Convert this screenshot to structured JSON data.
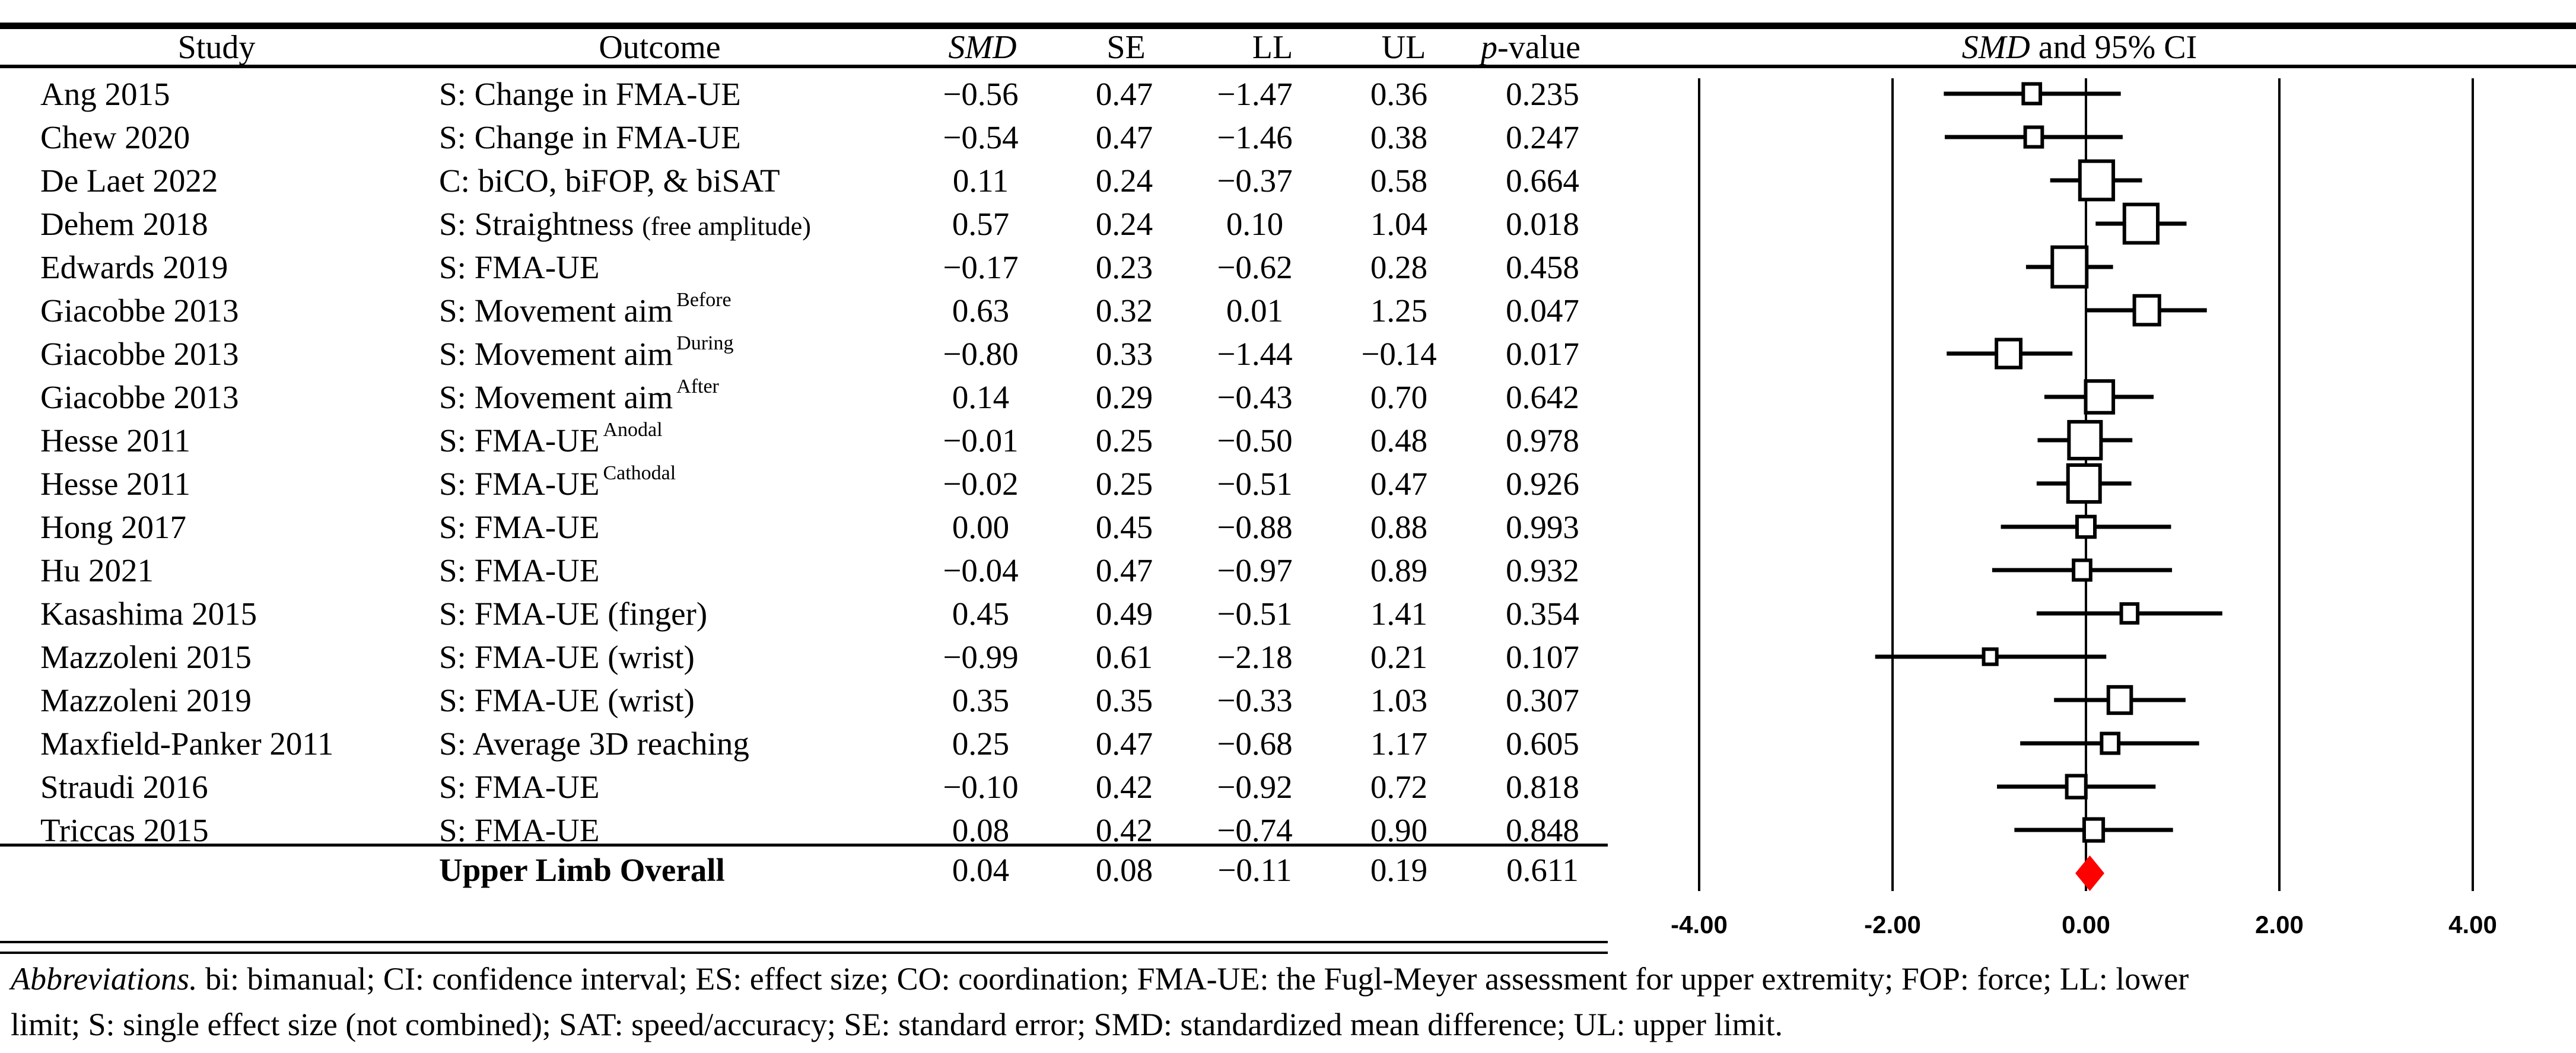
{
  "header": {
    "col_study": "Study",
    "col_outcome": "Outcome",
    "col_smd": "SMD",
    "col_se": "SE",
    "col_ll": "LL",
    "col_ul": "UL",
    "col_p_italic": "p",
    "col_p_rest": "-value",
    "plot_title_italic": "SMD",
    "plot_title_rest": " and 95% CI"
  },
  "rows": [
    {
      "study": "Ang 2015",
      "outcome": "S: Change in FMA-UE",
      "note": "",
      "sup": "",
      "smd": "−0.56",
      "se": "0.47",
      "ll": "−1.47",
      "ul": "0.36",
      "p": "0.235"
    },
    {
      "study": "Chew 2020",
      "outcome": "S: Change in FMA-UE",
      "note": "",
      "sup": "",
      "smd": "−0.54",
      "se": "0.47",
      "ll": "−1.46",
      "ul": "0.38",
      "p": "0.247"
    },
    {
      "study": "De Laet 2022",
      "outcome": "C: biCO, biFOP, & biSAT",
      "note": "",
      "sup": "",
      "smd": "0.11",
      "se": "0.24",
      "ll": "−0.37",
      "ul": "0.58",
      "p": "0.664"
    },
    {
      "study": "Dehem 2018",
      "outcome": "S: Straightness",
      "note": "(free amplitude)",
      "sup": "",
      "smd": "0.57",
      "se": "0.24",
      "ll": "0.10",
      "ul": "1.04",
      "p": "0.018"
    },
    {
      "study": "Edwards 2019",
      "outcome": "S: FMA-UE",
      "note": "",
      "sup": "",
      "smd": "−0.17",
      "se": "0.23",
      "ll": "−0.62",
      "ul": "0.28",
      "p": "0.458"
    },
    {
      "study": "Giacobbe 2013",
      "outcome": "S: Movement aim",
      "note": "",
      "sup": "Before",
      "smd": "0.63",
      "se": "0.32",
      "ll": "0.01",
      "ul": "1.25",
      "p": "0.047"
    },
    {
      "study": "Giacobbe 2013",
      "outcome": "S: Movement aim",
      "note": "",
      "sup": "During",
      "smd": "−0.80",
      "se": "0.33",
      "ll": "−1.44",
      "ul": "−0.14",
      "p": "0.017"
    },
    {
      "study": "Giacobbe 2013",
      "outcome": "S: Movement aim",
      "note": "",
      "sup": "After",
      "smd": "0.14",
      "se": "0.29",
      "ll": "−0.43",
      "ul": "0.70",
      "p": "0.642"
    },
    {
      "study": "Hesse 2011",
      "outcome": "S: FMA-UE",
      "note": "",
      "sup": "Anodal",
      "smd": "−0.01",
      "se": "0.25",
      "ll": "−0.50",
      "ul": "0.48",
      "p": "0.978"
    },
    {
      "study": "Hesse 2011",
      "outcome": "S: FMA-UE",
      "note": "",
      "sup": "Cathodal",
      "smd": "−0.02",
      "se": "0.25",
      "ll": "−0.51",
      "ul": "0.47",
      "p": "0.926"
    },
    {
      "study": "Hong 2017",
      "outcome": "S: FMA-UE",
      "note": "",
      "sup": "",
      "smd": "0.00",
      "se": "0.45",
      "ll": "−0.88",
      "ul": "0.88",
      "p": "0.993"
    },
    {
      "study": "Hu 2021",
      "outcome": "S: FMA-UE",
      "note": "",
      "sup": "",
      "smd": "−0.04",
      "se": "0.47",
      "ll": "−0.97",
      "ul": "0.89",
      "p": "0.932"
    },
    {
      "study": "Kasashima 2015",
      "outcome": "S: FMA-UE (finger)",
      "note": "",
      "sup": "",
      "smd": "0.45",
      "se": "0.49",
      "ll": "−0.51",
      "ul": "1.41",
      "p": "0.354"
    },
    {
      "study": "Mazzoleni 2015",
      "outcome": "S: FMA-UE (wrist)",
      "note": "",
      "sup": "",
      "smd": "−0.99",
      "se": "0.61",
      "ll": "−2.18",
      "ul": "0.21",
      "p": "0.107"
    },
    {
      "study": "Mazzoleni 2019",
      "outcome": "S: FMA-UE (wrist)",
      "note": "",
      "sup": "",
      "smd": "0.35",
      "se": "0.35",
      "ll": "−0.33",
      "ul": "1.03",
      "p": "0.307"
    },
    {
      "study": "Maxfield-Panker 2011",
      "outcome": "S: Average 3D reaching",
      "note": "",
      "sup": "",
      "smd": "0.25",
      "se": "0.47",
      "ll": "−0.68",
      "ul": "1.17",
      "p": "0.605"
    },
    {
      "study": "Straudi 2016",
      "outcome": "S: FMA-UE",
      "note": "",
      "sup": "",
      "smd": "−0.10",
      "se": "0.42",
      "ll": "−0.92",
      "ul": "0.72",
      "p": "0.818"
    },
    {
      "study": "Triccas 2015",
      "outcome": "S: FMA-UE",
      "note": "",
      "sup": "",
      "smd": "0.08",
      "se": "0.42",
      "ll": "−0.74",
      "ul": "0.90",
      "p": "0.848"
    }
  ],
  "overall": {
    "label": "Upper Limb Overall",
    "smd": "0.04",
    "se": "0.08",
    "ll": "−0.11",
    "ul": "0.19",
    "p": "0.611"
  },
  "axis": {
    "ticks": [
      "-4.00",
      "-2.00",
      "0.00",
      "2.00",
      "4.00"
    ]
  },
  "footer": {
    "abbrev_italic": "Abbreviations.",
    "line1_rest": " bi: bimanual; CI: confidence interval; ES: effect size; CO: coordination; FMA-UE: the Fugl-Meyer assessment for upper extremity; FOP: force; LL: lower",
    "line2": "limit; S: single effect size (not combined); SAT: speed/accuracy; SE: standard error; SMD: standardized mean difference; UL: upper limit."
  },
  "chart_data": {
    "type": "forest",
    "title": "SMD and 95% CI",
    "x_ticks": [
      -4,
      -2,
      0,
      2,
      4
    ],
    "x_tick_labels": [
      "-4.00",
      "-2.00",
      "0.00",
      "2.00",
      "4.00"
    ],
    "xlim": [
      -4.7,
      5.1
    ],
    "grid": "vertical-lines-at-ticks",
    "marker_color": "#000000",
    "marker_fill": "#ffffff",
    "diamond_color": "#fe0000",
    "studies": [
      {
        "label": "Ang 2015",
        "smd": -0.56,
        "se": 0.47,
        "ll": -1.47,
        "ul": 0.36,
        "p": 0.235
      },
      {
        "label": "Chew 2020",
        "smd": -0.54,
        "se": 0.47,
        "ll": -1.46,
        "ul": 0.38,
        "p": 0.247
      },
      {
        "label": "De Laet 2022",
        "smd": 0.11,
        "se": 0.24,
        "ll": -0.37,
        "ul": 0.58,
        "p": 0.664
      },
      {
        "label": "Dehem 2018",
        "smd": 0.57,
        "se": 0.24,
        "ll": 0.1,
        "ul": 1.04,
        "p": 0.018
      },
      {
        "label": "Edwards 2019",
        "smd": -0.17,
        "se": 0.23,
        "ll": -0.62,
        "ul": 0.28,
        "p": 0.458
      },
      {
        "label": "Giacobbe 2013 Before",
        "smd": 0.63,
        "se": 0.32,
        "ll": 0.01,
        "ul": 1.25,
        "p": 0.047
      },
      {
        "label": "Giacobbe 2013 During",
        "smd": -0.8,
        "se": 0.33,
        "ll": -1.44,
        "ul": -0.14,
        "p": 0.017
      },
      {
        "label": "Giacobbe 2013 After",
        "smd": 0.14,
        "se": 0.29,
        "ll": -0.43,
        "ul": 0.7,
        "p": 0.642
      },
      {
        "label": "Hesse 2011 Anodal",
        "smd": -0.01,
        "se": 0.25,
        "ll": -0.5,
        "ul": 0.48,
        "p": 0.978
      },
      {
        "label": "Hesse 2011 Cathodal",
        "smd": -0.02,
        "se": 0.25,
        "ll": -0.51,
        "ul": 0.47,
        "p": 0.926
      },
      {
        "label": "Hong 2017",
        "smd": 0.0,
        "se": 0.45,
        "ll": -0.88,
        "ul": 0.88,
        "p": 0.993
      },
      {
        "label": "Hu 2021",
        "smd": -0.04,
        "se": 0.47,
        "ll": -0.97,
        "ul": 0.89,
        "p": 0.932
      },
      {
        "label": "Kasashima 2015",
        "smd": 0.45,
        "se": 0.49,
        "ll": -0.51,
        "ul": 1.41,
        "p": 0.354
      },
      {
        "label": "Mazzoleni 2015",
        "smd": -0.99,
        "se": 0.61,
        "ll": -2.18,
        "ul": 0.21,
        "p": 0.107
      },
      {
        "label": "Mazzoleni 2019",
        "smd": 0.35,
        "se": 0.35,
        "ll": -0.33,
        "ul": 1.03,
        "p": 0.307
      },
      {
        "label": "Maxfield-Panker 2011",
        "smd": 0.25,
        "se": 0.47,
        "ll": -0.68,
        "ul": 1.17,
        "p": 0.605
      },
      {
        "label": "Straudi 2016",
        "smd": -0.1,
        "se": 0.42,
        "ll": -0.92,
        "ul": 0.72,
        "p": 0.818
      },
      {
        "label": "Triccas 2015",
        "smd": 0.08,
        "se": 0.42,
        "ll": -0.74,
        "ul": 0.9,
        "p": 0.848
      }
    ],
    "overall": {
      "label": "Upper Limb Overall",
      "smd": 0.04,
      "se": 0.08,
      "ll": -0.11,
      "ul": 0.19,
      "p": 0.611
    }
  }
}
